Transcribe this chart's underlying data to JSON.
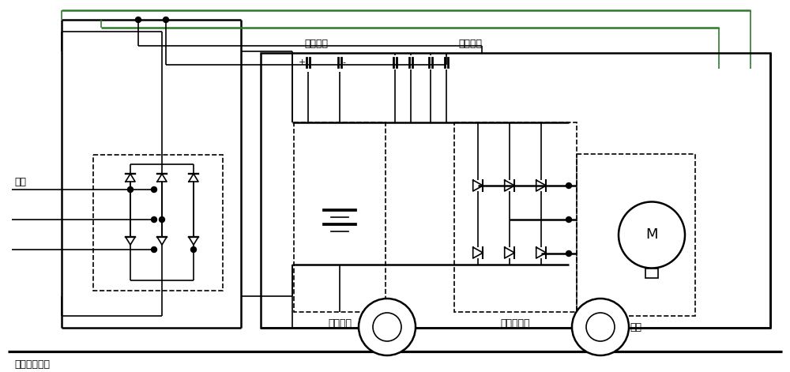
{
  "bg_color": "#ffffff",
  "line_color": "#000000",
  "green_color": "#2d7a2d",
  "lw": 1.2,
  "lw2": 1.8,
  "labels": {
    "dianliu_chongdian": "直流充电装置",
    "dianwang": "电网",
    "shouliu": "授流装置",
    "tongxin": "通信接口",
    "dongli": "动力电池",
    "qianyin": "牵引变流器",
    "dianji": "电机",
    "plus": "+",
    "minus": "-"
  }
}
